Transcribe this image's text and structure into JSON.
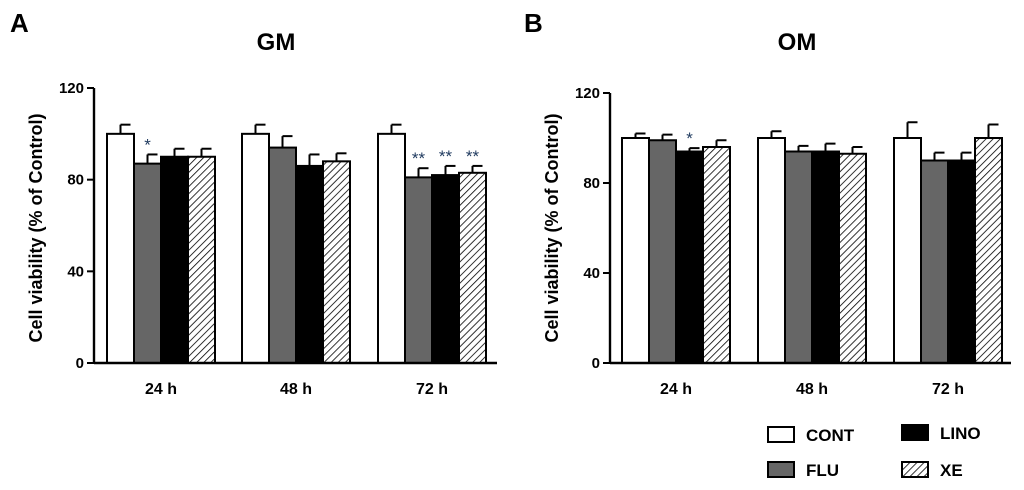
{
  "series_styles": {
    "CONT": {
      "fill": "#ffffff",
      "pattern": "none"
    },
    "FLU": {
      "fill": "#666666",
      "pattern": "none"
    },
    "LINO": {
      "fill": "#000000",
      "pattern": "none"
    },
    "XE": {
      "fill": "#ffffff",
      "pattern": "hatch"
    }
  },
  "sig_color": "#1f3a5f",
  "legend": {
    "items": [
      "CONT",
      "LINO",
      "FLU",
      "XE"
    ]
  },
  "chart_data": [
    {
      "type": "bar",
      "panel": "A",
      "title": "GM",
      "ylabel": "Cell viability (% of Control)",
      "xlabel": "",
      "ylim": [
        0,
        120
      ],
      "yticks": [
        0,
        40,
        80,
        120
      ],
      "categories": [
        "24 h",
        "48 h",
        "72 h"
      ],
      "series": [
        {
          "name": "CONT",
          "values": [
            100,
            100,
            100
          ],
          "errors": [
            4,
            4,
            4
          ],
          "sig": [
            "",
            "",
            ""
          ]
        },
        {
          "name": "FLU",
          "values": [
            87,
            94,
            81
          ],
          "errors": [
            4,
            5,
            4
          ],
          "sig": [
            "*",
            "",
            "**"
          ]
        },
        {
          "name": "LINO",
          "values": [
            90,
            86,
            82
          ],
          "errors": [
            3.5,
            5,
            4
          ],
          "sig": [
            "",
            "",
            "**"
          ]
        },
        {
          "name": "XE",
          "values": [
            90,
            88,
            83
          ],
          "errors": [
            3.5,
            3.5,
            3
          ],
          "sig": [
            "",
            "",
            "**"
          ]
        }
      ]
    },
    {
      "type": "bar",
      "panel": "B",
      "title": "OM",
      "ylabel": "Cell viability (% of Control)",
      "xlabel": "",
      "ylim": [
        0,
        120
      ],
      "yticks": [
        0,
        40,
        80,
        120
      ],
      "categories": [
        "24 h",
        "48 h",
        "72 h"
      ],
      "series": [
        {
          "name": "CONT",
          "values": [
            100,
            100,
            100
          ],
          "errors": [
            2,
            3,
            7
          ],
          "sig": [
            "",
            "",
            ""
          ]
        },
        {
          "name": "FLU",
          "values": [
            99,
            94,
            90
          ],
          "errors": [
            2.5,
            2.5,
            3.5
          ],
          "sig": [
            "",
            "",
            ""
          ]
        },
        {
          "name": "LINO",
          "values": [
            94,
            94,
            90
          ],
          "errors": [
            1.5,
            3.5,
            3.5
          ],
          "sig": [
            "*",
            "",
            ""
          ]
        },
        {
          "name": "XE",
          "values": [
            96,
            93,
            100
          ],
          "errors": [
            3,
            3,
            6
          ],
          "sig": [
            "",
            "",
            ""
          ]
        }
      ]
    }
  ]
}
